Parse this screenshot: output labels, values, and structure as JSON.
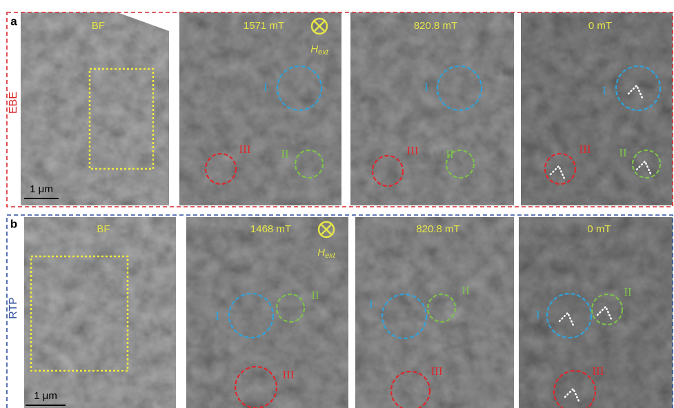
{
  "rows": [
    {
      "label": "a",
      "sample": "EBE",
      "sample_color": "#d9262b",
      "panels": [
        {
          "title": "BF",
          "scale_bar": "1 μm"
        },
        {
          "title": "1571 mT",
          "field": "H",
          "field_sub": "ext",
          "regions": [
            "I",
            "II",
            "III"
          ]
        },
        {
          "title": "820.8 mT",
          "regions": [
            "I",
            "II",
            "III"
          ]
        },
        {
          "title": "0 mT",
          "regions": [
            "I",
            "II",
            "III"
          ]
        }
      ]
    },
    {
      "label": "b",
      "sample": "RTP",
      "sample_color": "#2c4f9e",
      "panels": [
        {
          "title": "BF",
          "scale_bar": "1 μm"
        },
        {
          "title": "1468 mT",
          "field": "H",
          "field_sub": "ext",
          "regions": [
            "I",
            "II",
            "III"
          ]
        },
        {
          "title": "820.8 mT",
          "regions": [
            "I",
            "II",
            "III"
          ]
        },
        {
          "title": "0 mT",
          "regions": [
            "I",
            "II",
            "III"
          ]
        }
      ]
    }
  ]
}
